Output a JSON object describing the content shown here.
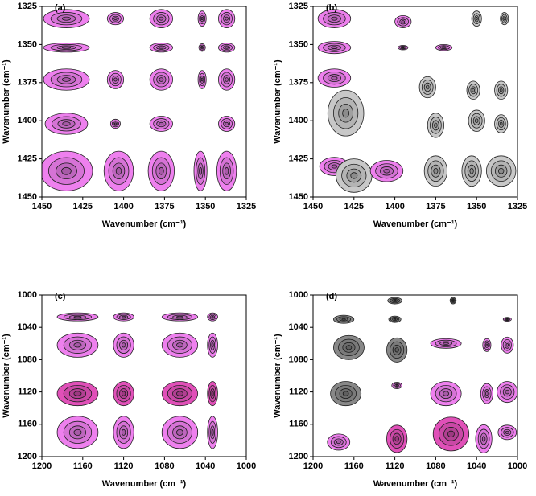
{
  "chart_data": [
    {
      "type": "contour",
      "title": "(a)",
      "x_label": "Wavenumber (cm⁻¹)",
      "y_label": "Wavenumber (cm⁻¹)",
      "xlim": [
        1450,
        1325
      ],
      "ylim": [
        1325,
        1450
      ],
      "xticks": [
        1450,
        1425,
        1400,
        1375,
        1350,
        1325
      ],
      "yticks": [
        1325,
        1350,
        1375,
        1400,
        1425,
        1450
      ],
      "x": [
        1435,
        1405,
        1377,
        1352,
        1337,
        1435,
        1377,
        1352,
        1337,
        1435,
        1405,
        1377,
        1352,
        1337,
        1435,
        1405,
        1377,
        1337,
        1435,
        1403,
        1377,
        1353,
        1337
      ],
      "y": [
        1333,
        1333,
        1333,
        1333,
        1333,
        1352,
        1352,
        1352,
        1352,
        1373,
        1373,
        1373,
        1373,
        1373,
        1402,
        1402,
        1402,
        1402,
        1433,
        1433,
        1433,
        1433,
        1433
      ],
      "widths": [
        28,
        10,
        14,
        5,
        10,
        28,
        14,
        4,
        10,
        28,
        10,
        14,
        5,
        10,
        26,
        6,
        14,
        10,
        32,
        18,
        16,
        8,
        12
      ],
      "heights": [
        12,
        8,
        12,
        10,
        12,
        6,
        6,
        5,
        6,
        14,
        12,
        14,
        12,
        14,
        14,
        6,
        10,
        10,
        26,
        26,
        26,
        26,
        26
      ],
      "colors": [
        "#ee80ee",
        "#ee80ee",
        "#ee80ee",
        "#ee80ee",
        "#ee80ee",
        "#ee80ee",
        "#ee80ee",
        "#ee80ee",
        "#ee80ee",
        "#ee80ee",
        "#ee80ee",
        "#ee80ee",
        "#ee80ee",
        "#ee80ee",
        "#ee80ee",
        "#ee80ee",
        "#ee80ee",
        "#ee80ee",
        "#ee80ee",
        "#ee80ee",
        "#ee80ee",
        "#ee80ee",
        "#ee80ee"
      ]
    },
    {
      "type": "contour",
      "title": "(b)",
      "x_label": "Wavenumber (cm⁻¹)",
      "y_label": "Wavenumber (cm⁻¹)",
      "xlim": [
        1450,
        1325
      ],
      "ylim": [
        1325,
        1450
      ],
      "xticks": [
        1450,
        1425,
        1400,
        1375,
        1350,
        1325
      ],
      "yticks": [
        1325,
        1350,
        1375,
        1400,
        1425,
        1450
      ],
      "x": [
        1437,
        1437,
        1437,
        1395,
        1395,
        1370,
        1350,
        1333,
        1430,
        1380,
        1352,
        1335,
        1375,
        1350,
        1335,
        1437,
        1425,
        1405,
        1375,
        1353,
        1335
      ],
      "y": [
        1333,
        1352,
        1372,
        1335,
        1352,
        1352,
        1333,
        1333,
        1395,
        1378,
        1380,
        1380,
        1403,
        1400,
        1402,
        1430,
        1436,
        1433,
        1433,
        1433,
        1433
      ],
      "widths": [
        20,
        20,
        20,
        10,
        6,
        10,
        6,
        5,
        22,
        10,
        8,
        8,
        10,
        10,
        8,
        18,
        22,
        20,
        14,
        12,
        18
      ],
      "heights": [
        12,
        8,
        12,
        8,
        3,
        4,
        10,
        8,
        30,
        14,
        12,
        12,
        16,
        14,
        12,
        12,
        22,
        14,
        20,
        20,
        20
      ],
      "colors": [
        "#ee80ee",
        "#ee80ee",
        "#ee80ee",
        "#ee80ee",
        "#ee80ee",
        "#ee80ee",
        "#c8c8c8",
        "#c8c8c8",
        "#c8c8c8",
        "#c8c8c8",
        "#c8c8c8",
        "#c8c8c8",
        "#c8c8c8",
        "#c8c8c8",
        "#c8c8c8",
        "#ee80ee",
        "#c8c8c8",
        "#ee80ee",
        "#c8c8c8",
        "#c8c8c8",
        "#c8c8c8"
      ]
    },
    {
      "type": "contour",
      "title": "(c)",
      "x_label": "Wavenumber (cm⁻¹)",
      "y_label": "Wavenumber (cm⁻¹)",
      "xlim": [
        1200,
        1000
      ],
      "ylim": [
        1000,
        1200
      ],
      "xticks": [
        1200,
        1160,
        1120,
        1080,
        1040,
        1000
      ],
      "yticks": [
        1000,
        1040,
        1080,
        1120,
        1160,
        1200
      ],
      "x": [
        1165,
        1120,
        1065,
        1033,
        1165,
        1120,
        1065,
        1033,
        1165,
        1120,
        1065,
        1033,
        1165,
        1120,
        1065,
        1033
      ],
      "y": [
        1027,
        1027,
        1027,
        1027,
        1062,
        1062,
        1062,
        1062,
        1122,
        1122,
        1122,
        1122,
        1170,
        1170,
        1170,
        1170
      ],
      "widths": [
        40,
        20,
        35,
        10,
        40,
        20,
        35,
        10,
        40,
        20,
        35,
        10,
        40,
        20,
        35,
        10
      ],
      "heights": [
        10,
        10,
        10,
        10,
        30,
        30,
        30,
        30,
        30,
        30,
        30,
        30,
        40,
        40,
        40,
        40
      ],
      "colors": [
        "#ee80ee",
        "#ee80ee",
        "#ee80ee",
        "#ee80ee",
        "#ee80ee",
        "#ee80ee",
        "#ee80ee",
        "#ee80ee",
        "#e050b8",
        "#e050b8",
        "#e050b8",
        "#e050b8",
        "#ee80ee",
        "#ee80ee",
        "#ee80ee",
        "#ee80ee"
      ]
    },
    {
      "type": "contour",
      "title": "(d)",
      "x_label": "Wavenumber (cm⁻¹)",
      "y_label": "Wavenumber (cm⁻¹)",
      "xlim": [
        1200,
        1000
      ],
      "ylim": [
        1000,
        1200
      ],
      "xticks": [
        1200,
        1160,
        1120,
        1080,
        1040,
        1000
      ],
      "yticks": [
        1000,
        1040,
        1080,
        1120,
        1160,
        1200
      ],
      "x": [
        1165,
        1120,
        1120,
        1118,
        1168,
        1063,
        1170,
        1070,
        1030,
        1010,
        1118,
        1070,
        1030,
        1010,
        1175,
        1118,
        1065,
        1033,
        1010,
        1010
      ],
      "y": [
        1065,
        1007,
        1030,
        1068,
        1122,
        1007,
        1030,
        1060,
        1062,
        1062,
        1112,
        1122,
        1122,
        1120,
        1182,
        1178,
        1172,
        1178,
        1170,
        1030
      ],
      "widths": [
        30,
        14,
        12,
        20,
        30,
        6,
        20,
        30,
        8,
        12,
        10,
        30,
        12,
        20,
        22,
        20,
        35,
        16,
        18,
        8
      ],
      "heights": [
        30,
        8,
        8,
        30,
        30,
        8,
        10,
        12,
        16,
        20,
        8,
        30,
        25,
        26,
        20,
        34,
        42,
        35,
        18,
        5
      ],
      "colors": [
        "#888888",
        "#888888",
        "#888888",
        "#888888",
        "#888888",
        "#888888",
        "#888888",
        "#ee80ee",
        "#ee80ee",
        "#ee80ee",
        "#ee80ee",
        "#ee80ee",
        "#ee80ee",
        "#ee80ee",
        "#ee80ee",
        "#e050b8",
        "#e050b8",
        "#ee80ee",
        "#ee80ee",
        "#ee80ee"
      ]
    }
  ]
}
